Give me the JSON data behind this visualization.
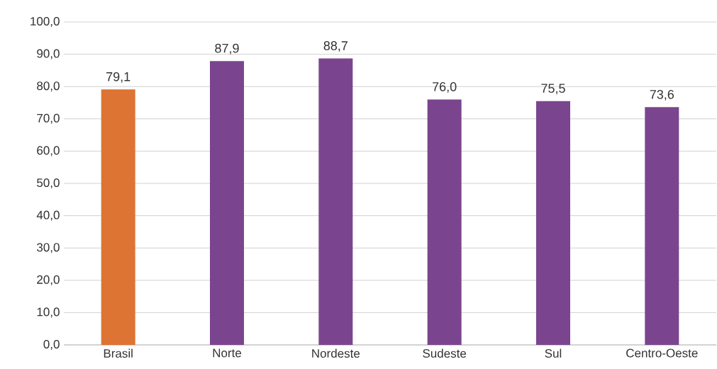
{
  "chart_data": {
    "type": "bar",
    "categories": [
      "Brasil",
      "Norte",
      "Nordeste",
      "Sudeste",
      "Sul",
      "Centro-Oeste"
    ],
    "values": [
      79.1,
      87.9,
      88.7,
      76.0,
      75.5,
      73.6
    ],
    "colors": [
      "#dd7433",
      "#7a458e",
      "#7a458e",
      "#7a458e",
      "#7a458e",
      "#7a458e"
    ],
    "value_labels": [
      "79,1",
      "87,9",
      "88,7",
      "76,0",
      "75,5",
      "73,6"
    ],
    "ylim": [
      0,
      100
    ],
    "yticks": [
      {
        "value": 0,
        "label": "0,0"
      },
      {
        "value": 10,
        "label": "10,0"
      },
      {
        "value": 20,
        "label": "20,0"
      },
      {
        "value": 30,
        "label": "30,0"
      },
      {
        "value": 40,
        "label": "40,0"
      },
      {
        "value": 50,
        "label": "50,0"
      },
      {
        "value": 60,
        "label": "60,0"
      },
      {
        "value": 70,
        "label": "70,0"
      },
      {
        "value": 80,
        "label": "80,0"
      },
      {
        "value": 90,
        "label": "90,0"
      },
      {
        "value": 100,
        "label": "100,0"
      }
    ],
    "grid": "y"
  }
}
